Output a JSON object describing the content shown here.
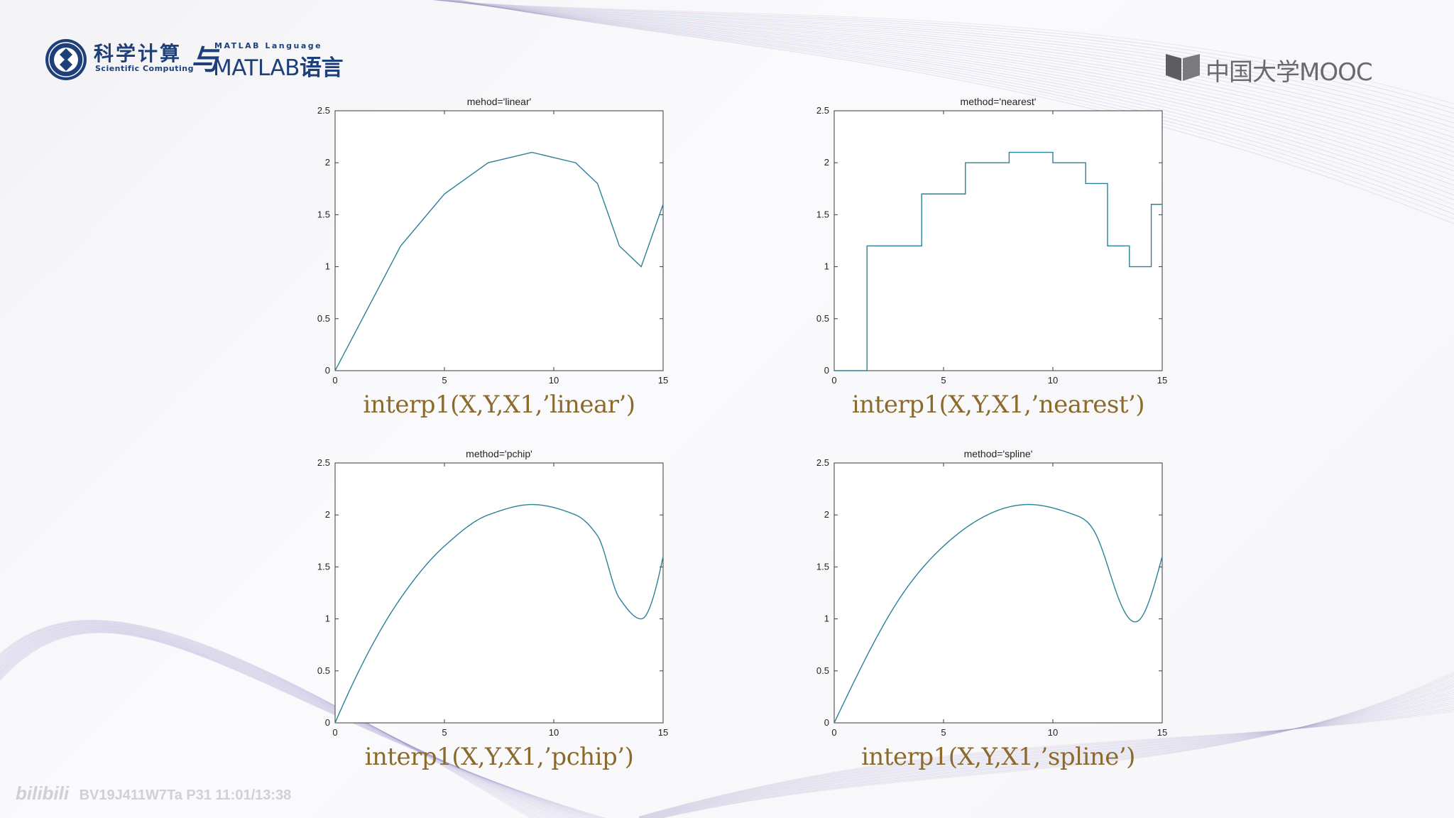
{
  "logo": {
    "cn": "科学计算",
    "en": "Scientific Computing",
    "connector": "与",
    "small": "MATLAB Language",
    "matlab": "MATLAB",
    "cn2": "语言"
  },
  "mooc": {
    "text": "中国大学MOOC"
  },
  "watermark": {
    "logo": "bilibili",
    "text": "BV19J411W7Ta P31 11:01/13:38"
  },
  "colors": {
    "line": "#2a8199",
    "caption": "#8b6a2c",
    "brand": "#1d3f7a"
  },
  "charts": [
    {
      "title": "mehod='linear'",
      "caption": "interp1(X,Y,X1,’linear’)",
      "method": "linear"
    },
    {
      "title": "method='nearest'",
      "caption": "interp1(X,Y,X1,’nearest’)",
      "method": "nearest"
    },
    {
      "title": "method='pchip'",
      "caption": "interp1(X,Y,X1,’pchip’)",
      "method": "pchip"
    },
    {
      "title": "method='spline'",
      "caption": "interp1(X,Y,X1,’spline’)",
      "method": "spline"
    }
  ],
  "chart_data": [
    {
      "type": "line",
      "title": "mehod='linear'",
      "xlabel": "",
      "ylabel": "",
      "xlim": [
        0,
        15
      ],
      "ylim": [
        0,
        2.5
      ],
      "xticks": [
        0,
        5,
        10,
        15
      ],
      "yticks": [
        0,
        0.5,
        1,
        1.5,
        2,
        2.5
      ],
      "x": [
        0,
        3,
        5,
        7,
        9,
        11,
        12,
        13,
        14,
        15
      ],
      "y": [
        0,
        1.2,
        1.7,
        2.0,
        2.1,
        2.0,
        1.8,
        1.2,
        1.0,
        1.6
      ],
      "grid": false
    },
    {
      "type": "line",
      "title": "method='nearest'",
      "xlabel": "",
      "ylabel": "",
      "xlim": [
        0,
        15
      ],
      "ylim": [
        0,
        2.5
      ],
      "xticks": [
        0,
        5,
        10,
        15
      ],
      "yticks": [
        0,
        0.5,
        1,
        1.5,
        2,
        2.5
      ],
      "x": [
        0,
        3,
        5,
        7,
        9,
        11,
        12,
        13,
        14,
        15
      ],
      "y": [
        0,
        1.2,
        1.7,
        2.0,
        2.1,
        2.0,
        1.8,
        1.2,
        1.0,
        1.6
      ],
      "grid": false
    },
    {
      "type": "line",
      "title": "method='pchip'",
      "xlabel": "",
      "ylabel": "",
      "xlim": [
        0,
        15
      ],
      "ylim": [
        0,
        2.5
      ],
      "xticks": [
        0,
        5,
        10,
        15
      ],
      "yticks": [
        0,
        0.5,
        1,
        1.5,
        2,
        2.5
      ],
      "x": [
        0,
        3,
        5,
        7,
        9,
        11,
        12,
        13,
        14,
        15
      ],
      "y": [
        0,
        1.2,
        1.7,
        2.0,
        2.1,
        2.0,
        1.8,
        1.2,
        1.0,
        1.6
      ],
      "grid": false
    },
    {
      "type": "line",
      "title": "method='spline'",
      "xlabel": "",
      "ylabel": "",
      "xlim": [
        0,
        15
      ],
      "ylim": [
        0,
        2.5
      ],
      "xticks": [
        0,
        5,
        10,
        15
      ],
      "yticks": [
        0,
        0.5,
        1,
        1.5,
        2,
        2.5
      ],
      "x": [
        0,
        3,
        5,
        7,
        9,
        11,
        12,
        13,
        14,
        15
      ],
      "y": [
        0,
        1.2,
        1.7,
        2.0,
        2.1,
        2.0,
        1.8,
        1.2,
        1.0,
        1.6
      ],
      "grid": false
    }
  ]
}
